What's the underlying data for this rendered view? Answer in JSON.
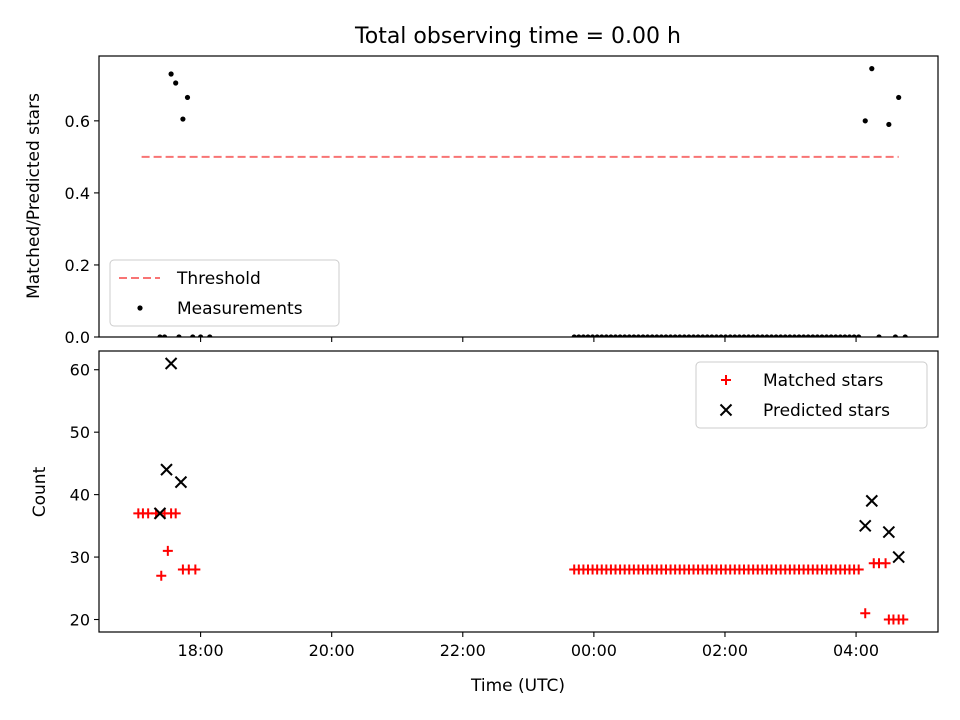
{
  "chart_data": {
    "title": "Total observing time = 0.00 h",
    "xlabel": "Time (UTC)",
    "x_unit": "hours after 2024-01-01 00:00 UTC (ticks printed as HH:MM)",
    "xlim": [
      -7.55,
      5.25
    ],
    "xticks": [
      {
        "x": -6,
        "label": "18:00"
      },
      {
        "x": -4,
        "label": "20:00"
      },
      {
        "x": -2,
        "label": "22:00"
      },
      {
        "x": 0,
        "label": "00:00"
      },
      {
        "x": 2,
        "label": "02:00"
      },
      {
        "x": 4,
        "label": "04:00"
      }
    ],
    "panels": [
      {
        "type": "scatter",
        "ylabel": "Matched/Predicted stars",
        "ylim": [
          0,
          0.78
        ],
        "yticks": [
          0.0,
          0.2,
          0.4,
          0.6
        ],
        "yticklabels": [
          "0.0",
          "0.2",
          "0.4",
          "0.6"
        ],
        "legend_position": "lower-left",
        "series": [
          {
            "name": "Threshold",
            "kind": "dashed-line",
            "color": "#f87474",
            "x": [
              -6.9,
              4.65
            ],
            "y": [
              0.5,
              0.5
            ]
          },
          {
            "name": "Measurements",
            "kind": "dots",
            "color": "#000000",
            "x": [
              -6.62,
              -6.55,
              -6.45,
              -6.38,
              -6.33,
              -6.27,
              -6.2,
              -6.12,
              -6.0,
              -5.86,
              -0.3,
              -0.23,
              -0.16,
              -0.09,
              -0.02,
              0.05,
              0.12,
              0.19,
              0.26,
              0.33,
              0.4,
              0.47,
              0.54,
              0.61,
              0.68,
              0.75,
              0.82,
              0.89,
              0.96,
              1.03,
              1.1,
              1.17,
              1.24,
              1.31,
              1.38,
              1.45,
              1.52,
              1.59,
              1.66,
              1.73,
              1.8,
              1.87,
              1.94,
              2.01,
              2.08,
              2.15,
              2.22,
              2.29,
              2.36,
              2.43,
              2.5,
              2.57,
              2.64,
              2.71,
              2.78,
              2.85,
              2.92,
              2.99,
              3.06,
              3.13,
              3.2,
              3.27,
              3.34,
              3.41,
              3.48,
              3.55,
              3.62,
              3.69,
              3.76,
              3.83,
              3.9,
              3.97,
              4.04,
              4.14,
              4.24,
              4.35,
              4.5,
              4.6,
              4.65,
              4.75
            ],
            "y": [
              0.0,
              0.0,
              0.73,
              0.705,
              0.0,
              0.605,
              0.665,
              0.0,
              0.0,
              0.0,
              0,
              0,
              0,
              0,
              0,
              0,
              0,
              0,
              0,
              0,
              0,
              0,
              0,
              0,
              0,
              0,
              0,
              0,
              0,
              0,
              0,
              0,
              0,
              0,
              0,
              0,
              0,
              0,
              0,
              0,
              0,
              0,
              0,
              0,
              0,
              0,
              0,
              0,
              0,
              0,
              0,
              0,
              0,
              0,
              0,
              0,
              0,
              0,
              0,
              0,
              0,
              0,
              0,
              0,
              0,
              0,
              0,
              0,
              0,
              0,
              0,
              0,
              0,
              0.6,
              0.745,
              0.0,
              0.59,
              0.0,
              0.665,
              0.0
            ]
          }
        ]
      },
      {
        "type": "scatter",
        "ylabel": "Count",
        "ylim": [
          18,
          63
        ],
        "yticks": [
          20,
          30,
          40,
          50,
          60
        ],
        "yticklabels": [
          "20",
          "30",
          "40",
          "50",
          "60"
        ],
        "legend_position": "upper-right",
        "series": [
          {
            "name": "Matched stars",
            "kind": "plus",
            "color": "#ff0000",
            "x": [
              -6.95,
              -6.88,
              -6.8,
              -6.68,
              -6.6,
              -6.55,
              -6.5,
              -6.45,
              -6.38,
              -6.27,
              -6.18,
              -6.08,
              -0.3,
              -0.23,
              -0.16,
              -0.09,
              -0.02,
              0.05,
              0.12,
              0.19,
              0.26,
              0.33,
              0.4,
              0.47,
              0.54,
              0.61,
              0.68,
              0.75,
              0.82,
              0.89,
              0.96,
              1.03,
              1.1,
              1.17,
              1.24,
              1.31,
              1.38,
              1.45,
              1.52,
              1.59,
              1.66,
              1.73,
              1.8,
              1.87,
              1.94,
              2.01,
              2.08,
              2.15,
              2.22,
              2.29,
              2.36,
              2.43,
              2.5,
              2.57,
              2.64,
              2.71,
              2.78,
              2.85,
              2.92,
              2.99,
              3.06,
              3.13,
              3.2,
              3.27,
              3.34,
              3.41,
              3.48,
              3.55,
              3.62,
              3.69,
              3.76,
              3.83,
              3.9,
              3.97,
              4.04,
              4.14,
              4.27,
              4.35,
              4.45,
              4.5,
              4.57,
              4.65,
              4.72
            ],
            "y": [
              37,
              37,
              37,
              37,
              27,
              37,
              31,
              37,
              37,
              28,
              28,
              28,
              28,
              28,
              28,
              28,
              28,
              28,
              28,
              28,
              28,
              28,
              28,
              28,
              28,
              28,
              28,
              28,
              28,
              28,
              28,
              28,
              28,
              28,
              28,
              28,
              28,
              28,
              28,
              28,
              28,
              28,
              28,
              28,
              28,
              28,
              28,
              28,
              28,
              28,
              28,
              28,
              28,
              28,
              28,
              28,
              28,
              28,
              28,
              28,
              28,
              28,
              28,
              28,
              28,
              28,
              28,
              28,
              28,
              28,
              28,
              28,
              28,
              28,
              28,
              21,
              29,
              29,
              29,
              20,
              20,
              20,
              20
            ]
          },
          {
            "name": "Predicted stars",
            "kind": "x",
            "color": "#000000",
            "x": [
              -6.62,
              -6.52,
              -6.45,
              -6.3,
              4.14,
              4.24,
              4.5,
              4.65
            ],
            "y": [
              37,
              44,
              61,
              42,
              35,
              39,
              34,
              30
            ]
          }
        ]
      }
    ]
  }
}
